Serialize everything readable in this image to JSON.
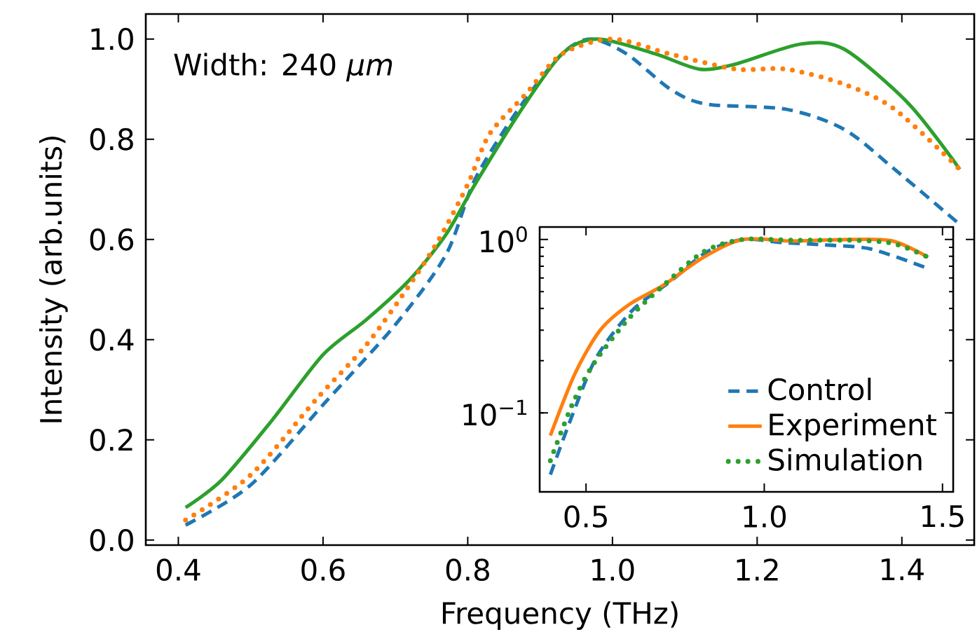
{
  "chart_data": [
    {
      "type": "line",
      "xlabel": "Frequency (THz)",
      "ylabel": "Intensity (arb.units)",
      "annotations": [
        "Width: 240 *μm*"
      ],
      "xlim": [
        0.355,
        1.5
      ],
      "ylim": [
        -0.01,
        1.05
      ],
      "xticks": [
        {
          "value": 0.4,
          "label": "0.4"
        },
        {
          "value": 0.6,
          "label": "0.6"
        },
        {
          "value": 0.8,
          "label": "0.8"
        },
        {
          "value": 1.0,
          "label": "1.0"
        },
        {
          "value": 1.2,
          "label": "1.2"
        },
        {
          "value": 1.4,
          "label": "1.4"
        }
      ],
      "yticks": [
        {
          "value": 0.0,
          "label": "0.0"
        },
        {
          "value": 0.2,
          "label": "0.2"
        },
        {
          "value": 0.4,
          "label": "0.4"
        },
        {
          "value": 0.6,
          "label": "0.6"
        },
        {
          "value": 0.8,
          "label": "0.8"
        },
        {
          "value": 1.0,
          "label": "1.0"
        }
      ],
      "series": [
        {
          "color": "#1f77b4",
          "line_style": "dashed",
          "x": [
            0.41,
            0.5,
            0.6,
            0.7,
            0.77,
            0.81,
            0.87,
            0.93,
            0.97,
            1.02,
            1.08,
            1.13,
            1.24,
            1.32,
            1.39,
            1.48
          ],
          "values": [
            0.03,
            0.11,
            0.27,
            0.43,
            0.57,
            0.72,
            0.86,
            0.97,
            1.0,
            0.97,
            0.9,
            0.87,
            0.86,
            0.82,
            0.74,
            0.63
          ]
        },
        {
          "color": "#2ca02c",
          "line_style": "solid",
          "x": [
            0.41,
            0.46,
            0.53,
            0.6,
            0.66,
            0.72,
            0.77,
            0.81,
            0.87,
            0.93,
            0.98,
            1.06,
            1.12,
            1.17,
            1.26,
            1.32,
            1.41,
            1.48
          ],
          "values": [
            0.065,
            0.12,
            0.24,
            0.37,
            0.44,
            0.52,
            0.61,
            0.71,
            0.85,
            0.97,
            1.0,
            0.97,
            0.94,
            0.95,
            0.99,
            0.98,
            0.87,
            0.74
          ]
        },
        {
          "color": "#ff7f0e",
          "line_style": "dotted",
          "x": [
            0.41,
            0.5,
            0.59,
            0.66,
            0.72,
            0.76,
            0.8,
            0.83,
            0.88,
            0.93,
            1.0,
            1.08,
            1.17,
            1.24,
            1.32,
            1.39,
            1.48
          ],
          "values": [
            0.04,
            0.13,
            0.28,
            0.39,
            0.51,
            0.6,
            0.71,
            0.81,
            0.89,
            0.97,
            1.0,
            0.97,
            0.94,
            0.94,
            0.91,
            0.86,
            0.74
          ]
        }
      ]
    },
    {
      "type": "line",
      "log": "y",
      "legend": "bottom right",
      "xlim": [
        0.37,
        1.53
      ],
      "ylim": [
        0.035,
        1.18
      ],
      "xticks": [
        {
          "value": 0.5,
          "label": "0.5"
        },
        {
          "value": 1.0,
          "label": "1.0"
        },
        {
          "value": 1.5,
          "label": "1.5"
        }
      ],
      "yticks": [
        {
          "value": 0.1,
          "label": "10$^{−1}$"
        },
        {
          "value": 1,
          "label": "10$^{0}$"
        }
      ],
      "series": [
        {
          "name": "Control",
          "color": "#1f77b4",
          "line_style": "dashed",
          "x": [
            0.4,
            0.46,
            0.53,
            0.63,
            0.74,
            0.84,
            0.94,
            1.05,
            1.17,
            1.3,
            1.46
          ],
          "values": [
            0.044,
            0.095,
            0.21,
            0.39,
            0.58,
            0.85,
            1.0,
            0.96,
            0.93,
            0.88,
            0.68
          ]
        },
        {
          "name": "Experiment",
          "color": "#ff7f0e",
          "line_style": "solid",
          "x": [
            0.4,
            0.47,
            0.54,
            0.62,
            0.72,
            0.83,
            0.94,
            1.08,
            1.24,
            1.36,
            1.46
          ],
          "values": [
            0.074,
            0.17,
            0.3,
            0.42,
            0.55,
            0.79,
            1.0,
            0.98,
            1.0,
            0.98,
            0.79
          ]
        },
        {
          "name": "Simulation",
          "color": "#2ca02c",
          "line_style": "dotted",
          "x": [
            0.4,
            0.46,
            0.52,
            0.62,
            0.72,
            0.83,
            0.94,
            1.08,
            1.24,
            1.36,
            1.46
          ],
          "values": [
            0.053,
            0.11,
            0.19,
            0.35,
            0.55,
            0.85,
            1.0,
            0.99,
            0.99,
            0.95,
            0.79
          ]
        }
      ]
    }
  ]
}
